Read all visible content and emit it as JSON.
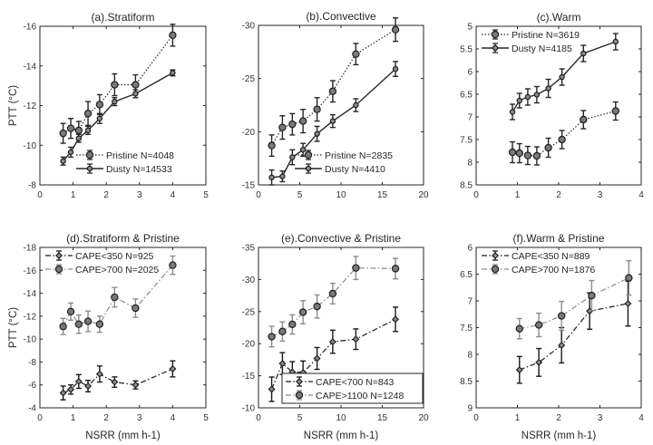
{
  "chart_data": [
    {
      "type": "line",
      "title": "(a).Stratiform",
      "xlabel": "",
      "ylabel": "PTT (°C)",
      "xlim": [
        0,
        5
      ],
      "ylim": [
        -8,
        -16
      ],
      "xticks": [
        0,
        1,
        2,
        3,
        4,
        5
      ],
      "yticks": [
        -8,
        -10,
        -12,
        -14,
        -16
      ],
      "grid": false,
      "legend": "bottom-right",
      "legend_box": false,
      "series": [
        {
          "name": "Pristine  N=4048",
          "line": "dotted",
          "color": "#262626",
          "marker": "circle-large",
          "x": [
            0.7,
            0.93,
            1.17,
            1.45,
            1.8,
            2.25,
            2.88,
            4.0
          ],
          "y": [
            -10.6,
            -10.85,
            -10.75,
            -11.6,
            -12.05,
            -13.05,
            -13.05,
            -15.55
          ],
          "err": [
            0.5,
            0.5,
            0.45,
            0.6,
            0.5,
            0.55,
            0.5,
            0.55
          ]
        },
        {
          "name": "Dusty N=14533",
          "line": "solid",
          "color": "#262626",
          "marker": "circle-small",
          "x": [
            0.7,
            0.93,
            1.17,
            1.45,
            1.8,
            2.25,
            2.88,
            4.0
          ],
          "y": [
            -9.2,
            -9.65,
            -10.35,
            -10.75,
            -11.35,
            -12.2,
            -12.6,
            -13.65
          ],
          "err": [
            0.2,
            0.25,
            0.2,
            0.2,
            0.25,
            0.2,
            0.2,
            0.15
          ]
        }
      ]
    },
    {
      "type": "line",
      "title": "(b).Convective",
      "xlabel": "",
      "ylabel": "",
      "xlim": [
        0,
        20
      ],
      "ylim": [
        -15,
        -30
      ],
      "xticks": [
        0,
        5,
        10,
        15,
        20
      ],
      "yticks": [
        -15,
        -20,
        -25,
        -30
      ],
      "grid": false,
      "legend": "bottom-right",
      "legend_box": false,
      "series": [
        {
          "name": "Pristine  N=2835",
          "line": "dotted",
          "color": "#262626",
          "marker": "circle-large",
          "x": [
            1.6,
            2.9,
            4.1,
            5.4,
            7.1,
            9.0,
            11.8,
            16.6
          ],
          "y": [
            -18.7,
            -20.4,
            -20.7,
            -21.0,
            -22.1,
            -23.8,
            -27.3,
            -29.6
          ],
          "err": [
            1.0,
            1.1,
            1.0,
            1.1,
            1.1,
            1.0,
            1.0,
            1.1
          ]
        },
        {
          "name": "Dusty N=4410",
          "line": "solid",
          "color": "#262626",
          "marker": "circle-small",
          "x": [
            1.6,
            2.9,
            4.1,
            5.4,
            7.1,
            9.0,
            11.8,
            16.6
          ],
          "y": [
            -15.7,
            -15.8,
            -17.6,
            -18.3,
            -19.8,
            -21.0,
            -22.5,
            -25.9
          ],
          "err": [
            0.7,
            0.5,
            0.7,
            0.6,
            0.7,
            0.6,
            0.6,
            0.7
          ]
        }
      ]
    },
    {
      "type": "line",
      "title": "(c).Warm",
      "xlabel": "",
      "ylabel": "",
      "xlim": [
        0,
        4
      ],
      "ylim": [
        8.5,
        5
      ],
      "xticks": [
        0,
        1,
        2,
        3,
        4
      ],
      "yticks": [
        5,
        5.5,
        6,
        6.5,
        7,
        7.5,
        8,
        8.5
      ],
      "grid": false,
      "legend": "top-left",
      "legend_box": false,
      "series": [
        {
          "name": "Pristine  N=3619",
          "line": "dotted",
          "color": "#262626",
          "marker": "circle-large",
          "x": [
            0.88,
            1.05,
            1.25,
            1.47,
            1.75,
            2.08,
            2.6,
            3.38
          ],
          "y": [
            7.78,
            7.8,
            7.85,
            7.86,
            7.68,
            7.5,
            7.06,
            6.87
          ],
          "err": [
            0.23,
            0.21,
            0.2,
            0.2,
            0.21,
            0.2,
            0.2,
            0.2
          ]
        },
        {
          "name": "Dusty N=4185",
          "line": "solid",
          "color": "#262626",
          "marker": "circle-small",
          "x": [
            0.88,
            1.05,
            1.25,
            1.47,
            1.75,
            2.08,
            2.6,
            3.38
          ],
          "y": [
            6.89,
            6.64,
            6.56,
            6.51,
            6.37,
            6.12,
            5.6,
            5.34
          ],
          "err": [
            0.17,
            0.16,
            0.18,
            0.18,
            0.2,
            0.18,
            0.18,
            0.18
          ]
        }
      ]
    },
    {
      "type": "line",
      "title": "(d).Stratiform & Pristine",
      "xlabel": "NSRR (mm h-1)",
      "ylabel": "PTT (°C)",
      "xlim": [
        0,
        5
      ],
      "ylim": [
        -4,
        -18
      ],
      "xticks": [
        0,
        1,
        2,
        3,
        4,
        5
      ],
      "yticks": [
        -4,
        -6,
        -8,
        -10,
        -12,
        -14,
        -16,
        -18
      ],
      "grid": false,
      "legend": "top-left",
      "legend_box": false,
      "series": [
        {
          "name": "CAPE<350  N=925",
          "line": "dashdot",
          "color": "#1a1a1a",
          "marker": "diamond",
          "x": [
            0.7,
            0.93,
            1.17,
            1.45,
            1.8,
            2.25,
            2.88,
            4.0
          ],
          "y": [
            -5.3,
            -5.6,
            -6.3,
            -5.9,
            -6.95,
            -6.25,
            -6.0,
            -7.4
          ],
          "err": [
            0.6,
            0.4,
            0.6,
            0.5,
            0.7,
            0.45,
            0.35,
            0.7
          ]
        },
        {
          "name": "CAPE>700 N=2025",
          "line": "dashdot",
          "color": "#8c8c8c",
          "marker": "circle-large",
          "x": [
            0.7,
            0.93,
            1.17,
            1.45,
            1.8,
            2.25,
            2.88,
            4.0
          ],
          "y": [
            -11.1,
            -12.4,
            -11.3,
            -11.55,
            -11.3,
            -13.65,
            -12.7,
            -16.45
          ],
          "err": [
            0.7,
            0.75,
            0.8,
            0.9,
            0.7,
            0.85,
            0.8,
            0.8
          ]
        }
      ]
    },
    {
      "type": "line",
      "title": "(e).Convective & Pristine",
      "xlabel": "NSRR (mm h-1)",
      "ylabel": "",
      "xlim": [
        0,
        20
      ],
      "ylim": [
        -10,
        -35
      ],
      "xticks": [
        0,
        5,
        10,
        15,
        20
      ],
      "yticks": [
        -10,
        -15,
        -20,
        -25,
        -30,
        -35
      ],
      "grid": false,
      "legend": "bottom-right",
      "legend_box": true,
      "series": [
        {
          "name": "CAPE<700  N=843",
          "line": "dashdot",
          "color": "#1a1a1a",
          "marker": "diamond",
          "x": [
            1.6,
            2.9,
            4.1,
            5.4,
            7.1,
            9.0,
            11.8,
            16.6
          ],
          "y": [
            -12.9,
            -16.9,
            -15.6,
            -15.5,
            -17.7,
            -20.3,
            -20.7,
            -23.8
          ],
          "err": [
            1.9,
            1.7,
            1.6,
            1.8,
            1.7,
            1.8,
            1.6,
            1.9
          ]
        },
        {
          "name": "CAPE>1100 N=1248",
          "line": "dashdot",
          "color": "#8c8c8c",
          "marker": "circle-large",
          "x": [
            1.6,
            2.9,
            4.1,
            5.4,
            7.1,
            9.0,
            11.8,
            16.6
          ],
          "y": [
            -21.1,
            -21.9,
            -23.0,
            -24.9,
            -25.8,
            -27.8,
            -31.8,
            -31.7
          ],
          "err": [
            1.6,
            1.5,
            1.5,
            1.8,
            1.8,
            1.6,
            1.8,
            1.6
          ]
        }
      ]
    },
    {
      "type": "line",
      "title": "(f).Warm & Pristine",
      "xlabel": "NSRR (mm h-1)",
      "ylabel": "",
      "xlim": [
        0,
        4
      ],
      "ylim": [
        9,
        6
      ],
      "xticks": [
        0,
        1,
        2,
        3,
        4
      ],
      "yticks": [
        6,
        6.5,
        7,
        7.5,
        8,
        8.5,
        9
      ],
      "grid": false,
      "legend": "top-left",
      "legend_box": false,
      "series": [
        {
          "name": "CAPE<350  N=889",
          "line": "dashdot",
          "color": "#1a1a1a",
          "marker": "diamond",
          "x": [
            1.05,
            1.52,
            2.07,
            2.75,
            3.68
          ],
          "y": [
            8.29,
            8.15,
            7.83,
            7.19,
            7.05
          ],
          "err": [
            0.25,
            0.26,
            0.33,
            0.34,
            0.42
          ]
        },
        {
          "name": "CAPE>700 N=1876",
          "line": "dashdot",
          "color": "#8c8c8c",
          "marker": "circle-large",
          "x": [
            1.05,
            1.52,
            2.07,
            2.8,
            3.7
          ],
          "y": [
            7.52,
            7.45,
            7.28,
            6.9,
            6.57
          ],
          "err": [
            0.19,
            0.22,
            0.27,
            0.28,
            0.32
          ]
        }
      ]
    }
  ]
}
